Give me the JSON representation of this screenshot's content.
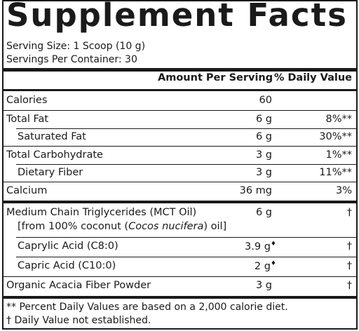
{
  "title": "Supplement Facts",
  "serving_size": "Serving Size: 1 Scoop (10 g)",
  "servings_per_container": "Servings Per Container: 30",
  "header": {
    "amount": "Amount Per Serving",
    "dv": "% Daily Value"
  },
  "rows": [
    {
      "name": "Calories",
      "amount": "60",
      "dv": ""
    },
    {
      "name": "Total Fat",
      "amount": "6 g",
      "dv": "8%**"
    },
    {
      "name": "Saturated Fat",
      "amount": "6 g",
      "dv": "30%**"
    },
    {
      "name": "Total Carbohydrate",
      "amount": "3 g",
      "dv": "1%**"
    },
    {
      "name": "Dietary Fiber",
      "amount": "3 g",
      "dv": "11%**"
    },
    {
      "name": "Calcium",
      "amount": "36 mg",
      "dv": "3%"
    },
    {
      "name": "Medium Chain Triglycerides (MCT Oil)",
      "amount": "6 g",
      "dv": "†"
    },
    {
      "name_pre": "[from 100% coconut (",
      "name_italic": "Cocos nucifera",
      "name_post": ") oil]"
    },
    {
      "name": "Caprylic Acid (C8:0)",
      "amount": "3.9 g",
      "amount_mark": "♦",
      "dv": "†"
    },
    {
      "name": "Capric Acid (C10:0)",
      "amount": "2 g",
      "amount_mark": "♦",
      "dv": "†"
    },
    {
      "name": "Organic Acacia Fiber Powder",
      "amount": "3 g",
      "dv": "†"
    }
  ],
  "footnotes": [
    "** Percent Daily Values are based on a 2,000 calorie diet.",
    "† Daily Value not established."
  ]
}
